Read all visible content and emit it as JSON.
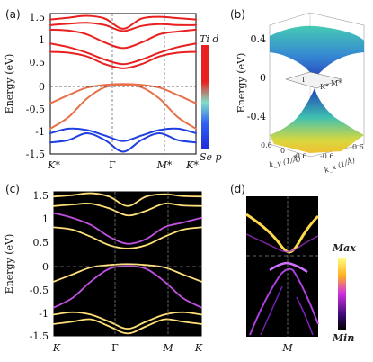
{
  "panels": {
    "a": {
      "label": "(a)",
      "ylabel": "Energy (eV)",
      "yticks": [
        "1.5",
        "1",
        "0.5",
        "0",
        "-0.5",
        "-1",
        "-1.5"
      ],
      "xticks": [
        "K*",
        "Γ",
        "M*",
        "K*"
      ],
      "colorbar_top": "Ti d",
      "colorbar_bottom": "Se p"
    },
    "b": {
      "label": "(b)",
      "zlabel": "Energy (eV)",
      "zticks": [
        "0.4",
        "0",
        "-0.4"
      ],
      "kx_label": "k_x (1/Å)",
      "ky_label": "k_y (1/Å)",
      "kx_ticks": [
        "-0.6",
        "0.6"
      ],
      "ky_ticks": [
        "0.6",
        "0",
        "-0.6"
      ],
      "point_labels": [
        "Γ",
        "K*",
        "M*"
      ]
    },
    "c": {
      "label": "(c)",
      "ylabel": "Energy (eV)",
      "yticks": [
        "1.5",
        "1",
        "0.5",
        "0",
        "-0.5",
        "-1",
        "-1.5"
      ],
      "xticks": [
        "K",
        "Γ",
        "M",
        "K"
      ]
    },
    "d": {
      "label": "(d)",
      "xtick": "M",
      "colorbar_top": "Max",
      "colorbar_bottom": "Min"
    }
  },
  "colors": {
    "ti_d": "#e8201f",
    "se_p": "#1f3fe0",
    "spectral_bright": "#ffe07a",
    "spectral_dark": "#000000"
  },
  "chart_data": [
    {
      "type": "line",
      "title": "",
      "ylabel": "Energy (eV)",
      "ylim": [
        -1.5,
        1.55
      ],
      "x_ticks": [
        "K*",
        "Γ",
        "M*",
        "K*"
      ],
      "x": [
        0,
        0.125,
        0.25,
        0.375,
        0.5,
        0.625,
        0.75,
        0.875,
        1.0
      ],
      "series": [
        {
          "values": [
            1.42,
            1.46,
            1.5,
            1.44,
            1.22,
            1.44,
            1.48,
            1.45,
            1.42
          ]
        },
        {
          "values": [
            1.3,
            1.33,
            1.35,
            1.3,
            1.17,
            1.28,
            1.32,
            1.3,
            1.3
          ]
        },
        {
          "values": [
            1.2,
            1.18,
            1.1,
            0.92,
            0.8,
            0.92,
            1.1,
            1.16,
            1.2
          ]
        },
        {
          "values": [
            0.9,
            0.82,
            0.7,
            0.55,
            0.45,
            0.55,
            0.7,
            0.82,
            0.9
          ]
        },
        {
          "values": [
            0.72,
            0.7,
            0.62,
            0.45,
            0.36,
            0.45,
            0.62,
            0.7,
            0.72
          ]
        },
        {
          "values": [
            -0.4,
            -0.22,
            -0.06,
            0.0,
            0.02,
            0.0,
            -0.06,
            -0.22,
            -0.4
          ]
        },
        {
          "values": [
            -0.95,
            -0.7,
            -0.3,
            -0.05,
            0.0,
            -0.05,
            -0.3,
            -0.7,
            -0.95
          ]
        },
        {
          "values": [
            -1.05,
            -0.95,
            -0.98,
            -1.1,
            -1.22,
            -1.1,
            -0.98,
            -0.95,
            -1.05
          ]
        },
        {
          "values": [
            -1.25,
            -1.2,
            -1.05,
            -1.2,
            -1.45,
            -1.2,
            -1.05,
            -1.2,
            -1.25
          ]
        }
      ]
    },
    {
      "type": "line",
      "title": "",
      "ylabel": "Energy (eV)",
      "ylim": [
        -1.5,
        1.55
      ],
      "x_ticks": [
        "K",
        "Γ",
        "M",
        "K"
      ],
      "x": [
        0,
        0.125,
        0.25,
        0.375,
        0.5,
        0.625,
        0.75,
        0.875,
        1.0
      ],
      "series": [
        {
          "values": [
            1.45,
            1.48,
            1.52,
            1.45,
            1.25,
            1.45,
            1.5,
            1.46,
            1.45
          ]
        },
        {
          "values": [
            1.25,
            1.28,
            1.3,
            1.2,
            1.05,
            1.15,
            1.3,
            1.26,
            1.25
          ]
        },
        {
          "values": [
            1.1,
            1.0,
            0.85,
            0.6,
            0.45,
            0.55,
            0.8,
            0.9,
            1.0
          ]
        },
        {
          "values": [
            0.8,
            0.75,
            0.6,
            0.42,
            0.35,
            0.42,
            0.6,
            0.75,
            0.8
          ]
        },
        {
          "values": [
            -0.35,
            -0.2,
            -0.05,
            0.0,
            0.02,
            0.0,
            -0.05,
            -0.2,
            -0.35
          ]
        },
        {
          "values": [
            -0.9,
            -0.7,
            -0.35,
            -0.08,
            -0.02,
            -0.08,
            -0.35,
            -0.7,
            -0.9
          ]
        },
        {
          "values": [
            -1.05,
            -1.0,
            -1.05,
            -1.2,
            -1.35,
            -1.2,
            -1.05,
            -1.0,
            -1.05
          ]
        },
        {
          "values": [
            -1.25,
            -1.2,
            -1.15,
            -1.3,
            -1.45,
            -1.3,
            -1.15,
            -1.2,
            -1.25
          ]
        }
      ]
    }
  ]
}
